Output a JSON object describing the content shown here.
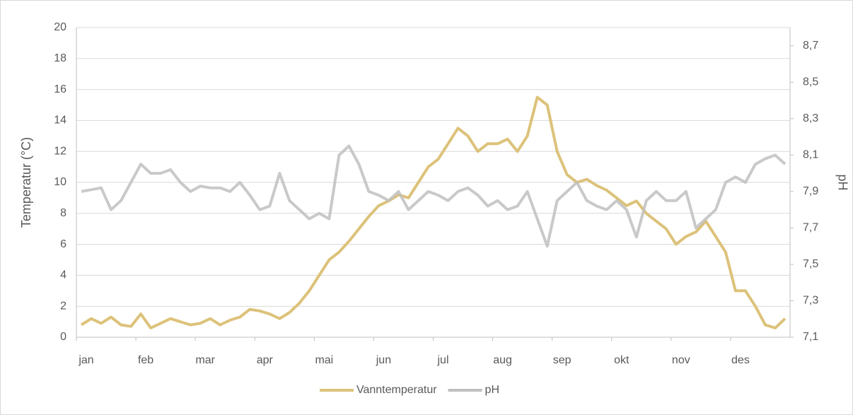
{
  "chart_data": {
    "type": "line",
    "y_label": "Temperatur (°C)",
    "y2_label": "pH",
    "categories": [
      "jan",
      null,
      null,
      null,
      null,
      null,
      "feb",
      null,
      null,
      null,
      null,
      null,
      "mar",
      null,
      null,
      null,
      null,
      null,
      "apr",
      null,
      null,
      null,
      null,
      null,
      "mai",
      null,
      null,
      null,
      null,
      null,
      "jun",
      null,
      null,
      null,
      null,
      null,
      "jul",
      null,
      null,
      null,
      null,
      null,
      "aug",
      null,
      null,
      null,
      null,
      null,
      "sep",
      null,
      null,
      null,
      null,
      null,
      "okt",
      null,
      null,
      null,
      null,
      null,
      "nov",
      null,
      null,
      null,
      null,
      null,
      "des",
      null,
      null,
      null,
      null,
      null
    ],
    "series": [
      {
        "name": "Vanntemperatur",
        "color": "#dcc27a",
        "axis": "y",
        "values": [
          0.8,
          1.2,
          0.9,
          1.3,
          0.8,
          0.7,
          1.5,
          0.6,
          0.9,
          1.2,
          1.0,
          0.8,
          0.9,
          1.2,
          0.8,
          1.1,
          1.3,
          1.8,
          1.7,
          1.5,
          1.2,
          1.6,
          2.2,
          3.0,
          4.0,
          5.0,
          5.5,
          6.2,
          7.0,
          7.8,
          8.5,
          8.8,
          9.2,
          9.0,
          10.0,
          11.0,
          11.5,
          12.5,
          13.5,
          13.0,
          12.0,
          12.5,
          12.5,
          12.8,
          12.0,
          13.0,
          15.5,
          15.0,
          12.0,
          10.5,
          10.0,
          10.2,
          9.8,
          9.5,
          9.0,
          8.5,
          8.8,
          8.0,
          7.5,
          7.0,
          6.0,
          6.5,
          6.8,
          7.5,
          6.5,
          5.5,
          3.0,
          3.0,
          2.0,
          0.8,
          0.6,
          1.2
        ]
      },
      {
        "name": "pH",
        "color": "#bfbfbf",
        "axis": "y2",
        "values": [
          7.9,
          7.91,
          7.92,
          7.8,
          7.85,
          7.95,
          8.05,
          8.0,
          8.0,
          8.02,
          7.95,
          7.9,
          7.93,
          7.92,
          7.92,
          7.9,
          7.95,
          7.88,
          7.8,
          7.82,
          8.0,
          7.85,
          7.8,
          7.75,
          7.78,
          7.75,
          8.1,
          8.15,
          8.05,
          7.9,
          7.88,
          7.85,
          7.9,
          7.8,
          7.85,
          7.9,
          7.88,
          7.85,
          7.9,
          7.92,
          7.88,
          7.82,
          7.85,
          7.8,
          7.82,
          7.9,
          7.75,
          7.6,
          7.85,
          7.9,
          7.95,
          7.85,
          7.82,
          7.8,
          7.85,
          7.8,
          7.65,
          7.85,
          7.9,
          7.85,
          7.85,
          7.9,
          7.7,
          7.75,
          7.8,
          7.95,
          7.98,
          7.95,
          8.05,
          8.08,
          8.1,
          8.05
        ]
      }
    ],
    "ylim": [
      0,
      20
    ],
    "yticks": [
      0,
      2,
      4,
      6,
      8,
      10,
      12,
      14,
      16,
      18,
      20
    ],
    "y2lim": [
      7.1,
      8.8
    ],
    "y2ticks": [
      {
        "value": 7.1,
        "label": "7,1"
      },
      {
        "value": 7.3,
        "label": "7,3"
      },
      {
        "value": 7.5,
        "label": "7,5"
      },
      {
        "value": 7.7,
        "label": "7,7"
      },
      {
        "value": 7.9,
        "label": "7,9"
      },
      {
        "value": 8.1,
        "label": "8,1"
      },
      {
        "value": 8.3,
        "label": "8,3"
      },
      {
        "value": 8.5,
        "label": "8,5"
      },
      {
        "value": 8.7,
        "label": "8,7"
      }
    ],
    "grid": true,
    "legend": "bottom"
  }
}
